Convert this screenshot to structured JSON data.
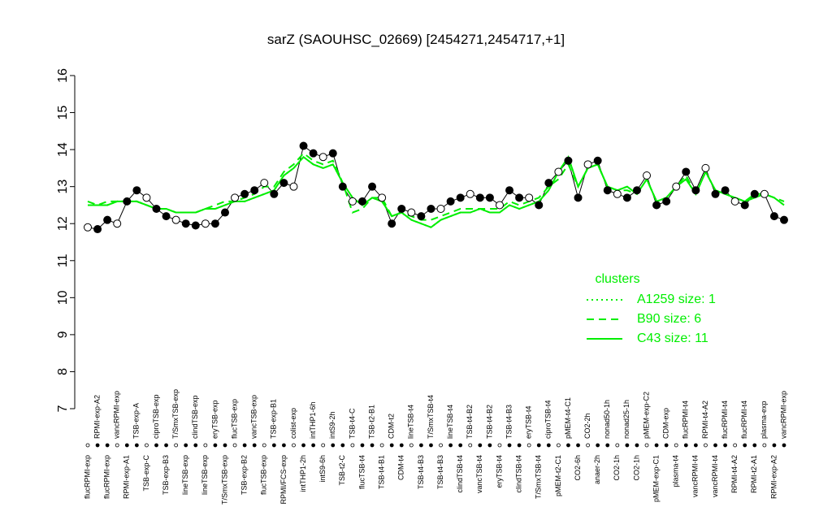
{
  "chart_data": {
    "type": "line",
    "title": "sarZ (SAOUHSC_02669) [2454271,2454717,+1]",
    "categories": [
      "flucRPMI-exp",
      "RPMI-exp-A2",
      "flucRPMI-exp",
      "vancRPMI-exp",
      "RPMI-exp-A1",
      "TSB-exp-A",
      "TSB-exp-C",
      "ciproTSB-exp",
      "TSB-exp-B3",
      "T/SmxTSB-exp",
      "lineTSB-exp",
      "clindTSB-exp",
      "lineTSB-exp",
      "eryTSB-exp",
      "T/SmxTSB-exp",
      "flucTSB-exp",
      "TSB-exp-B2",
      "vancTSB-exp",
      "flucTSB-exp",
      "TSB-exp-B1",
      "RPMI/FCS-exp",
      "colist-exp",
      "intTHP1-2h",
      "intTHP1-6h",
      "intS9-6h",
      "intS9-2h",
      "TSB-t2-C",
      "TSB-t4-C",
      "flucTSB-t4",
      "TSB-t2-B1",
      "TSB-t4-B1",
      "CDM-t2",
      "CDM-t4",
      "lineTSB-t4",
      "TSB-t4-B3",
      "T/SmxTSB-t4",
      "TSB-t4-B3",
      "lineTSB-t4",
      "clindTSB-t4",
      "TSB-t4-B2",
      "vancTSB-t4",
      "TSB-t4-B2",
      "eryTSB-t4",
      "TSB-t4-B3",
      "clindTSB-t4",
      "eryTSB-t4",
      "T/SmxTSB-t4",
      "ciproTSB-t4",
      "pMEM-t2-C1",
      "pMEM-t4-C1",
      "CO2-6h",
      "CO2-2h",
      "anaer-2h",
      "nonad50-1h",
      "CO2-1h",
      "nonad25-1h",
      "CO2-1h",
      "pMEM-exp-C2",
      "pMEM-exp-C1",
      "CDM-exp",
      "plasma-t4",
      "flucRPMI-t4",
      "vancRPMI-t4",
      "RPMI-t4-A2",
      "vancRPMI-t4",
      "flucRPMI-t4",
      "RPMI-t4-A2",
      "flucRPMI-t4",
      "RPMI-t2-A1",
      "plasma-exp",
      "RPMI-exp-A2",
      "vancRPMI-exp"
    ],
    "values": [
      11.9,
      11.85,
      12.1,
      12.0,
      12.6,
      12.9,
      12.7,
      12.4,
      12.2,
      12.1,
      12.0,
      11.95,
      12.0,
      12.0,
      12.3,
      12.7,
      12.8,
      12.9,
      13.1,
      12.8,
      13.1,
      13.0,
      14.1,
      13.9,
      13.8,
      13.9,
      13.0,
      12.6,
      12.6,
      13.0,
      12.7,
      12.0,
      12.4,
      12.3,
      12.2,
      12.4,
      12.4,
      12.6,
      12.7,
      12.8,
      12.7,
      12.7,
      12.5,
      12.9,
      12.7,
      12.7,
      12.5,
      13.1,
      13.4,
      13.7,
      12.7,
      13.6,
      13.7,
      12.9,
      12.8,
      12.7,
      12.9,
      13.3,
      12.5,
      12.6,
      13.0,
      13.4,
      12.9,
      13.5,
      12.8,
      12.9,
      12.6,
      12.5,
      12.8,
      12.8,
      12.2,
      12.1
    ],
    "legend_title": "clusters",
    "series": [
      {
        "name": "A1259 size: 1",
        "color": "#00ee00",
        "linestyle": "dotted",
        "values": [
          12.5,
          12.5,
          12.5,
          12.6,
          12.6,
          12.6,
          12.5,
          12.4,
          12.4,
          12.3,
          12.3,
          12.3,
          12.4,
          12.4,
          12.5,
          12.6,
          12.6,
          12.7,
          12.8,
          12.9,
          13.3,
          13.5,
          13.8,
          13.6,
          13.5,
          13.6,
          13.1,
          12.7,
          12.5,
          12.7,
          12.6,
          12.2,
          12.3,
          12.1,
          12.0,
          11.9,
          12.1,
          12.2,
          12.3,
          12.3,
          12.4,
          12.3,
          12.3,
          12.5,
          12.4,
          12.5,
          12.6,
          12.9,
          13.4,
          13.8,
          13.0,
          13.5,
          13.6,
          13.0,
          12.9,
          13.0,
          12.8,
          13.2,
          12.6,
          12.7,
          13.0,
          13.2,
          12.8,
          13.4,
          12.9,
          12.8,
          12.7,
          12.6,
          12.7,
          12.8,
          12.7,
          12.5
        ]
      },
      {
        "name": "B90 size: 6",
        "color": "#00ee00",
        "linestyle": "dashed",
        "values": [
          12.6,
          12.5,
          12.6,
          12.6,
          12.6,
          12.6,
          12.5,
          12.4,
          12.4,
          12.3,
          12.3,
          12.3,
          12.4,
          12.5,
          12.6,
          12.6,
          12.7,
          12.8,
          13.0,
          13.0,
          13.4,
          13.6,
          13.9,
          13.7,
          13.6,
          13.7,
          13.1,
          12.3,
          12.4,
          12.7,
          12.7,
          12.2,
          12.3,
          12.2,
          12.1,
          12.1,
          12.2,
          12.3,
          12.4,
          12.4,
          12.4,
          12.4,
          12.4,
          12.6,
          12.5,
          12.6,
          12.7,
          13.0,
          13.2,
          13.6,
          13.0,
          13.5,
          13.6,
          13.0,
          12.9,
          12.9,
          12.8,
          13.2,
          12.6,
          12.7,
          13.0,
          13.3,
          12.8,
          13.4,
          12.9,
          12.8,
          12.7,
          12.6,
          12.8,
          12.8,
          12.7,
          12.6
        ]
      },
      {
        "name": "C43 size: 11",
        "color": "#00ee00",
        "linestyle": "solid",
        "values": [
          12.5,
          12.5,
          12.5,
          12.6,
          12.6,
          12.6,
          12.5,
          12.4,
          12.4,
          12.3,
          12.3,
          12.3,
          12.4,
          12.4,
          12.5,
          12.6,
          12.6,
          12.7,
          12.8,
          12.9,
          13.3,
          13.5,
          13.8,
          13.6,
          13.5,
          13.6,
          13.1,
          12.7,
          12.5,
          12.7,
          12.6,
          12.2,
          12.3,
          12.1,
          12.0,
          11.9,
          12.1,
          12.2,
          12.3,
          12.3,
          12.4,
          12.3,
          12.3,
          12.5,
          12.4,
          12.5,
          12.6,
          12.9,
          13.4,
          13.8,
          13.0,
          13.5,
          13.6,
          13.0,
          12.9,
          13.0,
          12.8,
          13.2,
          12.6,
          12.7,
          13.0,
          13.2,
          12.8,
          13.4,
          12.9,
          12.8,
          12.7,
          12.6,
          12.7,
          12.8,
          12.7,
          12.5
        ]
      }
    ],
    "ylim": [
      7,
      16
    ],
    "yticks": [
      7,
      8,
      9,
      10,
      11,
      12,
      13,
      14,
      15,
      16
    ]
  }
}
